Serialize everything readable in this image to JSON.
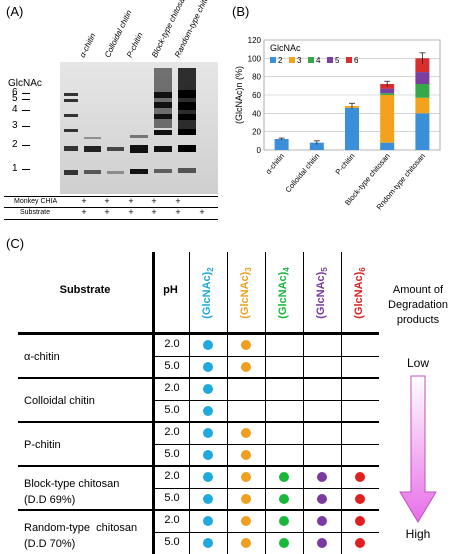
{
  "panel_a": {
    "label": "(A)",
    "lanes": [
      "α-chitin",
      "Colloidal chitin",
      "P-chitin",
      "Block-type chitosan",
      "Random-type chitosan"
    ],
    "marker_title": "GlcNAc",
    "dp_labels": [
      "6",
      "5",
      "4",
      "3",
      "2",
      "1"
    ],
    "row1_label": "Monkey CHIA",
    "row2_label": "Substrate",
    "row1_marks": [
      "+",
      "+",
      "+",
      "+",
      "+",
      "+"
    ],
    "row2_marks": [
      "+",
      "+",
      "+",
      "+",
      "+",
      "+"
    ]
  },
  "panel_b": {
    "label": "(B)"
  },
  "chart_data": {
    "type": "bar",
    "stacked": true,
    "title": "GlcNAc",
    "ylabel": "(GlcNAc)n (%)",
    "xlabel": "",
    "ylim": [
      0,
      120
    ],
    "yticks": [
      0,
      20,
      40,
      60,
      80,
      100,
      120
    ],
    "grid": true,
    "legend_position": "top-left",
    "categories": [
      "α-chitin",
      "Colloidal chitin",
      "P-chitin",
      "Block-type chitosan",
      "Rndom-type chitosan"
    ],
    "series": [
      {
        "name": "2",
        "color": "#3a8fd8",
        "values": [
          12,
          8,
          46,
          8,
          40
        ]
      },
      {
        "name": "3",
        "color": "#f3a21c",
        "values": [
          0,
          0,
          2,
          52,
          17
        ]
      },
      {
        "name": "4",
        "color": "#36a84a",
        "values": [
          0,
          0,
          0,
          2,
          15
        ]
      },
      {
        "name": "5",
        "color": "#7a3fa0",
        "values": [
          0,
          0,
          0,
          5,
          13
        ]
      },
      {
        "name": "6",
        "color": "#d92e2e",
        "values": [
          0,
          0,
          0,
          5,
          15
        ]
      }
    ],
    "totals": [
      12,
      8,
      48,
      72,
      100
    ],
    "errors": [
      1,
      2,
      3,
      3,
      6
    ]
  },
  "panel_c": {
    "label": "(C)",
    "col_substrate": "Substrate",
    "col_ph": "pH",
    "dp_headers": [
      {
        "base": "(GlcNAc)",
        "sub": "2",
        "color": "#1fa9dc"
      },
      {
        "base": "(GlcNAc)",
        "sub": "3",
        "color": "#f0a020"
      },
      {
        "base": "(GlcNAc)",
        "sub": "4",
        "color": "#18b83a"
      },
      {
        "base": "(GlcNAc)",
        "sub": "5",
        "color": "#7b3aa0"
      },
      {
        "base": "(GlcNAc)",
        "sub": "6",
        "color": "#e02020"
      }
    ],
    "rows": [
      {
        "substrate": [
          "α-chitin"
        ],
        "ph": [
          "2.0",
          "5.0"
        ],
        "dots": [
          [
            1,
            1,
            0,
            0,
            0
          ],
          [
            1,
            1,
            0,
            0,
            0
          ]
        ]
      },
      {
        "substrate": [
          "Colloidal chitin"
        ],
        "ph": [
          "2.0",
          "5.0"
        ],
        "dots": [
          [
            1,
            0,
            0,
            0,
            0
          ],
          [
            1,
            0,
            0,
            0,
            0
          ]
        ]
      },
      {
        "substrate": [
          "P-chitin"
        ],
        "ph": [
          "2.0",
          "5.0"
        ],
        "dots": [
          [
            1,
            1,
            0,
            0,
            0
          ],
          [
            1,
            1,
            0,
            0,
            0
          ]
        ]
      },
      {
        "substrate": [
          "Block-type chitosan",
          "(D.D 69%)"
        ],
        "ph": [
          "2.0",
          "5.0"
        ],
        "dots": [
          [
            1,
            1,
            1,
            1,
            1
          ],
          [
            1,
            1,
            1,
            1,
            1
          ]
        ]
      },
      {
        "substrate": [
          "Random-type  chitosan",
          "(D.D 70%)"
        ],
        "ph": [
          "2.0",
          "5.0"
        ],
        "dots": [
          [
            1,
            1,
            1,
            1,
            1
          ],
          [
            1,
            1,
            1,
            1,
            1
          ]
        ]
      }
    ],
    "legend_title": [
      "Amount of",
      "Degradation",
      "products"
    ],
    "legend_low": "Low",
    "legend_high": "High"
  }
}
